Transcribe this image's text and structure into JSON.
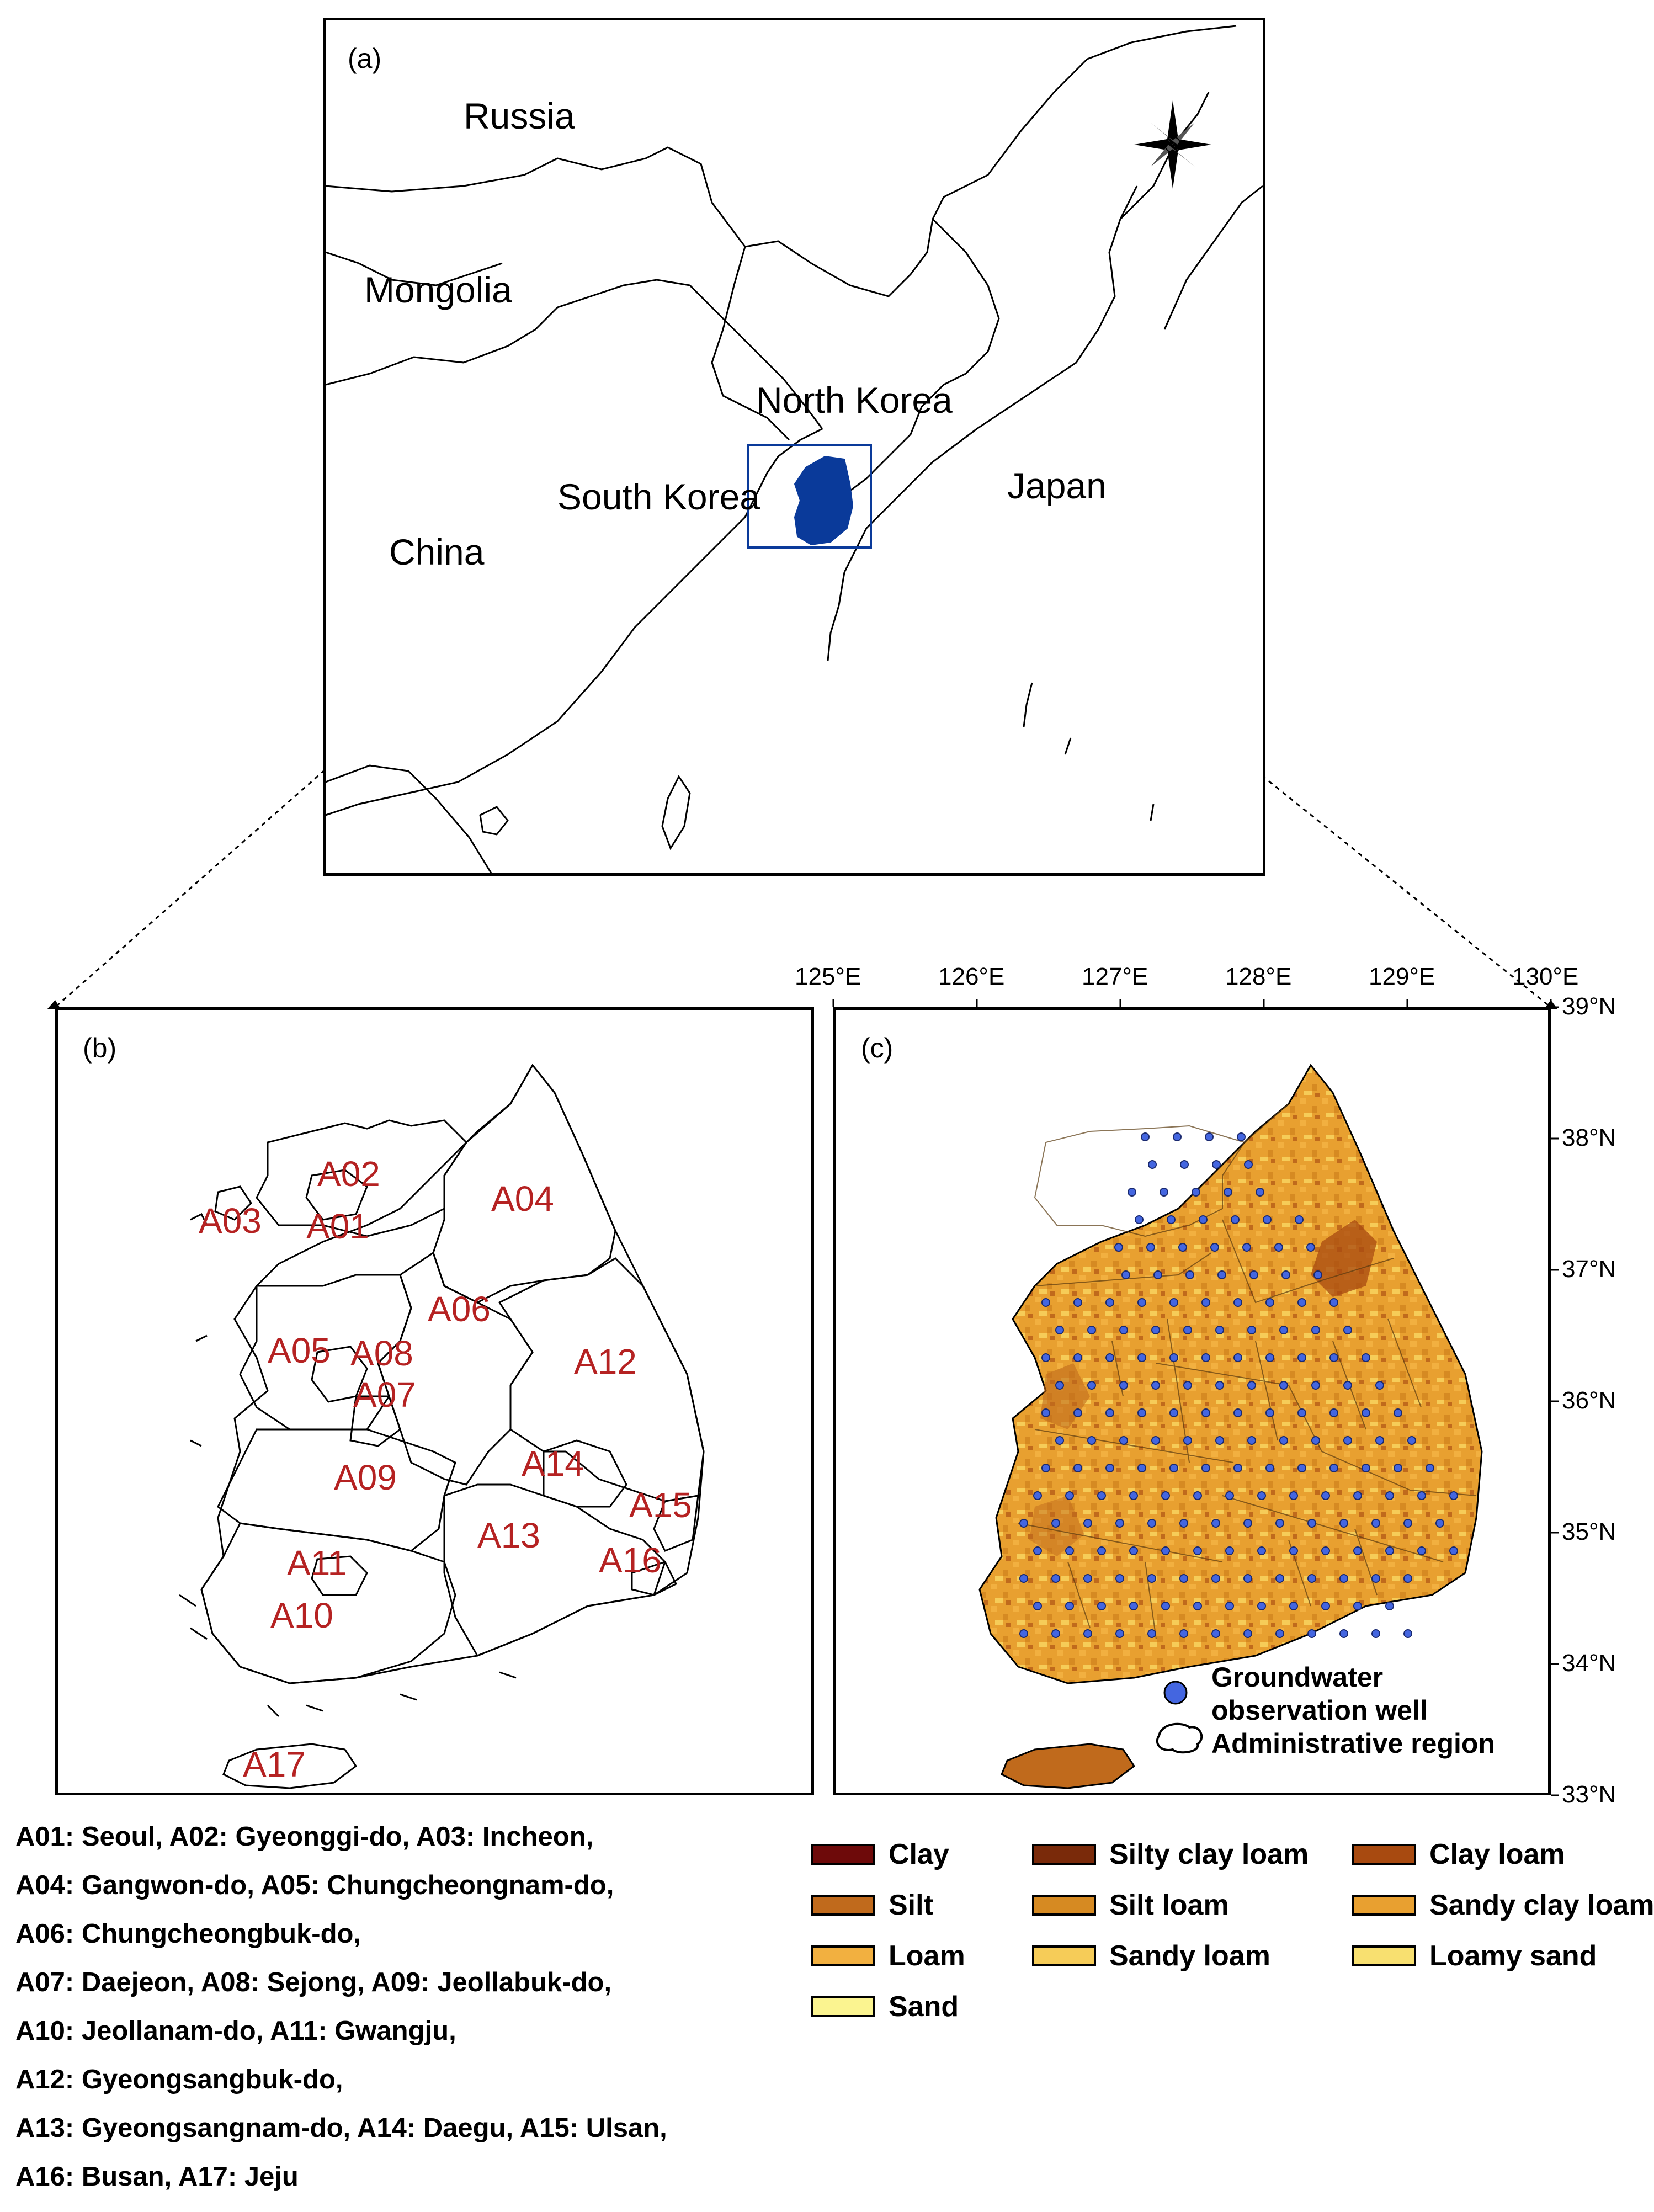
{
  "panel_a": {
    "label": "(a)",
    "countries": {
      "russia": "Russia",
      "mongolia": "Mongolia",
      "north_korea": "North Korea",
      "south_korea": "South Korea",
      "japan": "Japan",
      "china": "China"
    },
    "highlight_color": "#0a3a9a",
    "compass_icon": "compass-rose-icon"
  },
  "panel_b": {
    "label": "(b)",
    "regions": [
      "A01",
      "A02",
      "A03",
      "A04",
      "A05",
      "A06",
      "A07",
      "A08",
      "A09",
      "A10",
      "A11",
      "A12",
      "A13",
      "A14",
      "A15",
      "A16",
      "A17"
    ],
    "label_color": "#b52222"
  },
  "panel_c": {
    "label": "(c)",
    "lon_ticks": [
      "125°E",
      "126°E",
      "127°E",
      "128°E",
      "129°E",
      "130°E"
    ],
    "lat_ticks": [
      "39°N",
      "38°N",
      "37°N",
      "36°N",
      "35°N",
      "34°N",
      "33°N"
    ],
    "legend": {
      "well_line1": "Groundwater",
      "well_line2": "observation well",
      "region": "Administrative region",
      "well_color": "#4466e0"
    }
  },
  "abbreviations": [
    "A01: Seoul, A02: Gyeonggi-do, A03: Incheon,",
    "A04: Gangwon-do, A05: Chungcheongnam-do,",
    "A06: Chungcheongbuk-do,",
    "A07: Daejeon, A08: Sejong, A09: Jeollabuk-do,",
    "A10: Jeollanam-do, A11: Gwangju,",
    "A12: Gyeongsangbuk-do,",
    "A13: Gyeongsangnam-do, A14: Daegu, A15: Ulsan,",
    "A16: Busan, A17: Jeju"
  ],
  "soil_legend": [
    {
      "label": "Clay",
      "color": "#6e0a0a"
    },
    {
      "label": "Silty clay loam",
      "color": "#7a2a0a"
    },
    {
      "label": "Clay loam",
      "color": "#a84a10"
    },
    {
      "label": "Silt",
      "color": "#c06a1c"
    },
    {
      "label": "Silt loam",
      "color": "#d68a22"
    },
    {
      "label": "Sandy clay loam",
      "color": "#e8a030"
    },
    {
      "label": "Loam",
      "color": "#f2b040"
    },
    {
      "label": "Sandy loam",
      "color": "#f6cc58"
    },
    {
      "label": "Loamy sand",
      "color": "#f8e070"
    },
    {
      "label": "Sand",
      "color": "#fbf490"
    }
  ]
}
